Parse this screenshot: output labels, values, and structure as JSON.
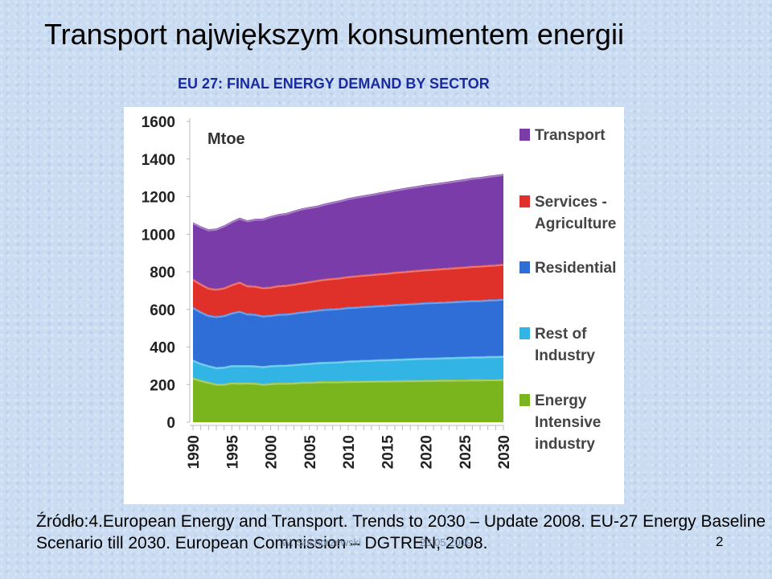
{
  "slide": {
    "title": "Transport największym konsumentem energii",
    "subtitle": "EU 27: FINAL ENERGY DEMAND BY SECTOR",
    "source": "Źródło:4.European Energy and Transport. Trends to 2030 – Update 2008. EU-27 Energy Baseline Scenario till 2030. European Commission – DGTREN, 2008.",
    "footer_author": "W. Suchorzewski",
    "footer_date": "23.05.2009",
    "slide_number": "2"
  },
  "chart_data": {
    "type": "area",
    "stacked": true,
    "unit_label": "Mtoe",
    "x": [
      1990,
      1991,
      1992,
      1993,
      1994,
      1995,
      1996,
      1997,
      1998,
      1999,
      2000,
      2001,
      2002,
      2003,
      2004,
      2005,
      2006,
      2007,
      2008,
      2009,
      2010,
      2011,
      2012,
      2013,
      2014,
      2015,
      2016,
      2017,
      2018,
      2019,
      2020,
      2021,
      2022,
      2023,
      2024,
      2025,
      2026,
      2027,
      2028,
      2029,
      2030
    ],
    "x_ticks": [
      "1990",
      "1995",
      "2000",
      "2005",
      "2010",
      "2015",
      "2020",
      "2025",
      "2030"
    ],
    "y_ticks": [
      "0",
      "200",
      "400",
      "600",
      "800",
      "1000",
      "1200",
      "1400",
      "1600"
    ],
    "ylim": [
      0,
      1600
    ],
    "grid": false,
    "legend_position": "right",
    "series": [
      {
        "name": "Energy Intensive industry",
        "color": "#7ab51d",
        "values": [
          238,
          225,
          215,
          205,
          205,
          212,
          210,
          212,
          210,
          205,
          208,
          210,
          210,
          212,
          215,
          215,
          217,
          218,
          218,
          218,
          220,
          220,
          221,
          221,
          222,
          222,
          223,
          223,
          224,
          224,
          225,
          225,
          226,
          226,
          227,
          227,
          228,
          228,
          229,
          229,
          230
        ]
      },
      {
        "name": "Rest of Industry",
        "color": "#32b4e5",
        "values": [
          95,
          90,
          88,
          88,
          90,
          92,
          93,
          92,
          92,
          93,
          95,
          95,
          96,
          97,
          98,
          100,
          102,
          103,
          104,
          106,
          108,
          109,
          110,
          111,
          112,
          113,
          114,
          115,
          116,
          117,
          118,
          118,
          119,
          120,
          120,
          121,
          122,
          122,
          123,
          123,
          124
        ]
      },
      {
        "name": "Residential",
        "color": "#2f6ed6",
        "values": [
          280,
          275,
          268,
          272,
          275,
          280,
          290,
          275,
          275,
          270,
          268,
          272,
          272,
          274,
          276,
          278,
          280,
          282,
          283,
          284,
          285,
          286,
          287,
          288,
          289,
          290,
          291,
          292,
          293,
          294,
          295,
          296,
          296,
          297,
          298,
          299,
          300,
          300,
          301,
          302,
          303
        ]
      },
      {
        "name": "Services - Agriculture",
        "color": "#e0302a",
        "values": [
          150,
          148,
          145,
          145,
          147,
          150,
          155,
          150,
          150,
          150,
          150,
          152,
          153,
          154,
          155,
          157,
          158,
          160,
          162,
          163,
          164,
          166,
          167,
          168,
          169,
          170,
          172,
          173,
          174,
          175,
          176,
          177,
          178,
          179,
          180,
          181,
          182,
          183,
          184,
          185,
          186
        ]
      },
      {
        "name": "Transport",
        "color": "#7a3ca8",
        "values": [
          300,
          305,
          310,
          320,
          330,
          335,
          340,
          345,
          355,
          365,
          375,
          378,
          382,
          388,
          393,
          395,
          395,
          400,
          405,
          410,
          415,
          419,
          422,
          426,
          430,
          434,
          437,
          441,
          444,
          447,
          450,
          453,
          456,
          459,
          462,
          465,
          468,
          471,
          473,
          476,
          478
        ]
      }
    ]
  }
}
